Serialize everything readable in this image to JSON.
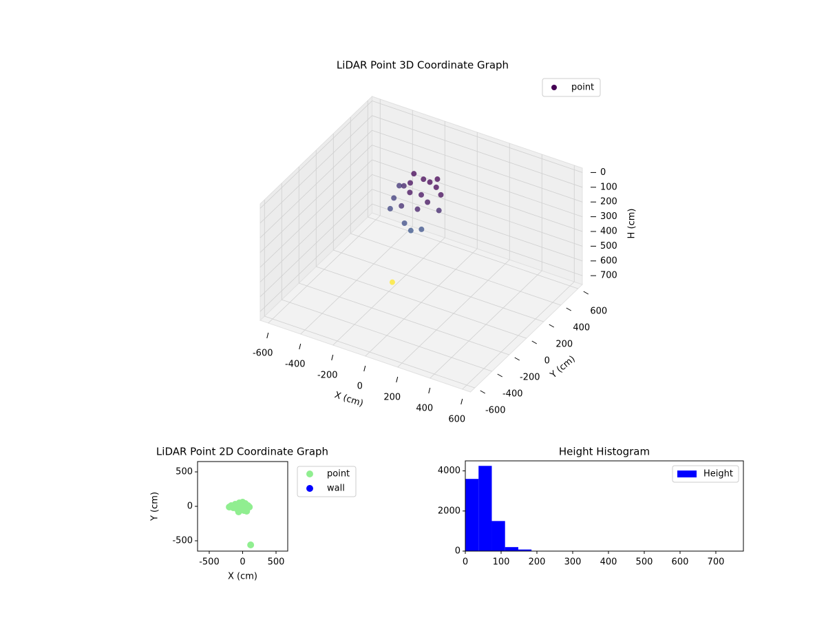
{
  "chart_data": [
    {
      "type": "scatter3d",
      "title": "LiDAR Point 3D Coordinate Graph",
      "x_label": "X (cm)",
      "y_label": "Y (cm)",
      "z_label": "H (cm)",
      "xlim": [
        -650,
        650
      ],
      "ylim": [
        -650,
        650
      ],
      "zlim": [
        -30,
        760
      ],
      "z_inverted": true,
      "xticks": [
        -600,
        -400,
        -200,
        0,
        200,
        400,
        600
      ],
      "yticks": [
        -600,
        -400,
        -200,
        0,
        200,
        400,
        600
      ],
      "zticks": [
        0,
        100,
        200,
        300,
        400,
        500,
        600,
        700
      ],
      "colormap": "viridis",
      "grid": true,
      "legend": "upper right",
      "series": [
        {
          "name": "point",
          "x": [
            0,
            -50,
            50,
            -100,
            100,
            0,
            -60,
            60,
            20,
            -120,
            -150,
            120,
            -80,
            30,
            -180,
            -160,
            -40,
            10,
            60,
            -200,
            -214
          ],
          "y": [
            100,
            120,
            80,
            60,
            40,
            0,
            -20,
            -40,
            150,
            140,
            80,
            -20,
            -80,
            -100,
            20,
            -60,
            -120,
            -140,
            -110,
            120,
            66
          ],
          "z": [
            0,
            10,
            5,
            20,
            15,
            30,
            25,
            35,
            0,
            10,
            70,
            80,
            90,
            60,
            130,
            150,
            170,
            190,
            180,
            110,
            740
          ]
        }
      ]
    },
    {
      "type": "scatter",
      "title": "LiDAR Point 2D Coordinate Graph",
      "x_label": "X (cm)",
      "y_label": "Y (cm)",
      "xlim": [
        -675,
        675
      ],
      "ylim": [
        -650,
        650
      ],
      "xticks": [
        -500,
        0,
        500
      ],
      "yticks": [
        -500,
        0,
        500
      ],
      "legend": "outside right",
      "series": [
        {
          "name": "point",
          "color": "#90ee90",
          "x": [
            -200,
            -170,
            -140,
            -110,
            -80,
            -50,
            -20,
            0,
            20,
            40,
            60,
            80,
            100,
            -60,
            10,
            50,
            -30,
            120
          ],
          "y": [
            -10,
            10,
            -20,
            30,
            -40,
            50,
            -30,
            60,
            -60,
            40,
            -70,
            10,
            -10,
            -80,
            20,
            -50,
            0,
            -560
          ]
        },
        {
          "name": "wall",
          "color": "#0000ff",
          "x": [],
          "y": []
        }
      ]
    },
    {
      "type": "histogram",
      "title": "Height Histogram",
      "bins": [
        0,
        37,
        74,
        111,
        148,
        185,
        222,
        259,
        296,
        333,
        370,
        407,
        444,
        481,
        518,
        555,
        592,
        629,
        666,
        703,
        740
      ],
      "series": [
        {
          "name": "Height",
          "color": "#0000ff",
          "values": [
            3600,
            4250,
            1500,
            200,
            80,
            0,
            0,
            0,
            0,
            0,
            0,
            0,
            0,
            0,
            0,
            0,
            0,
            0,
            0,
            1
          ]
        }
      ],
      "xlim": [
        0,
        777
      ],
      "ylim": [
        0,
        4500
      ],
      "xticks": [
        0,
        100,
        200,
        300,
        400,
        500,
        600,
        700
      ],
      "yticks": [
        0,
        2000,
        4000
      ],
      "legend": "upper right"
    }
  ]
}
